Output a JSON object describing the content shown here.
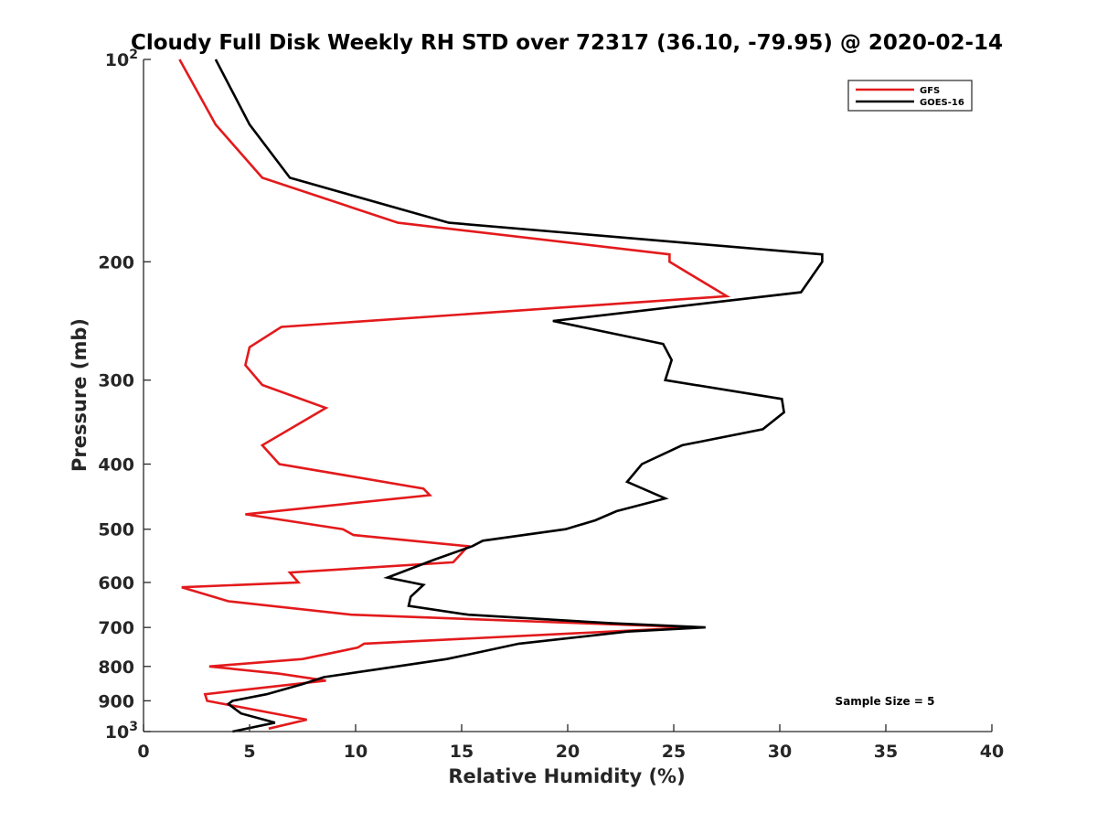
{
  "chart_data": {
    "type": "line",
    "title": "Cloudy Full Disk Weekly RH STD over 72317 (36.10, -79.95) @ 2020-02-14",
    "xlabel": "Relative Humidity (%)",
    "ylabel": "Pressure (mb)",
    "xlim": [
      0,
      40
    ],
    "ylim": [
      100,
      1000
    ],
    "y_scale": "log",
    "y_reversed": true,
    "grid": false,
    "legend_position": "top-right",
    "x_ticks": [
      "0",
      "5",
      "10",
      "15",
      "20",
      "25",
      "30",
      "35",
      "40"
    ],
    "y_ticks": [
      {
        "value": 100,
        "label": "10",
        "sup": "2"
      },
      {
        "value": 200,
        "label": "200",
        "sup": ""
      },
      {
        "value": 300,
        "label": "300",
        "sup": ""
      },
      {
        "value": 400,
        "label": "400",
        "sup": ""
      },
      {
        "value": 500,
        "label": "500",
        "sup": ""
      },
      {
        "value": 600,
        "label": "600",
        "sup": ""
      },
      {
        "value": 700,
        "label": "700",
        "sup": ""
      },
      {
        "value": 800,
        "label": "800",
        "sup": ""
      },
      {
        "value": 900,
        "label": "900",
        "sup": ""
      },
      {
        "value": 1000,
        "label": "10",
        "sup": "3"
      }
    ],
    "annotation": "Sample Size = 5",
    "series": [
      {
        "name": "GFS",
        "color": "#e31a1c",
        "x": [
          1.7,
          3.4,
          5.6,
          12.0,
          24.8,
          24.8,
          27.5,
          6.5,
          5.0,
          4.8,
          5.6,
          8.6,
          5.6,
          6.4,
          13.2,
          13.5,
          4.8,
          9.4,
          9.9,
          15.3,
          14.6,
          6.9,
          7.3,
          1.8,
          4.0,
          9.8,
          26.0,
          10.4,
          10.1,
          7.5,
          3.1,
          6.4,
          8.6,
          2.9,
          3.0,
          7.7,
          5.9
        ],
        "y": [
          100,
          125,
          150,
          175,
          195,
          200,
          225,
          250,
          268,
          285,
          305,
          330,
          375,
          400,
          435,
          445,
          475,
          500,
          510,
          530,
          560,
          580,
          600,
          610,
          640,
          670,
          700,
          740,
          750,
          780,
          800,
          820,
          840,
          880,
          900,
          960,
          990
        ]
      },
      {
        "name": "GOES-16",
        "color": "#000000",
        "x": [
          3.4,
          5.0,
          6.9,
          14.4,
          32.0,
          32.0,
          31.0,
          19.3,
          24.5,
          24.9,
          24.6,
          30.1,
          30.2,
          29.2,
          25.4,
          23.5,
          22.8,
          24.6,
          22.3,
          21.3,
          19.9,
          16.0,
          15.5,
          13.7,
          11.5,
          13.2,
          12.6,
          12.5,
          15.3,
          22.1,
          26.5,
          22.8,
          17.7,
          16.0,
          14.3,
          10.8,
          8.5,
          7.5,
          5.8,
          4.2,
          4.0,
          4.6,
          6.2,
          4.2
        ],
        "y": [
          100,
          125,
          150,
          175,
          195,
          200,
          222,
          245,
          265,
          280,
          300,
          320,
          335,
          355,
          375,
          400,
          425,
          450,
          470,
          485,
          500,
          520,
          530,
          555,
          590,
          605,
          630,
          650,
          670,
          690,
          700,
          710,
          740,
          760,
          780,
          810,
          830,
          850,
          880,
          900,
          910,
          940,
          970,
          1000
        ]
      }
    ]
  }
}
